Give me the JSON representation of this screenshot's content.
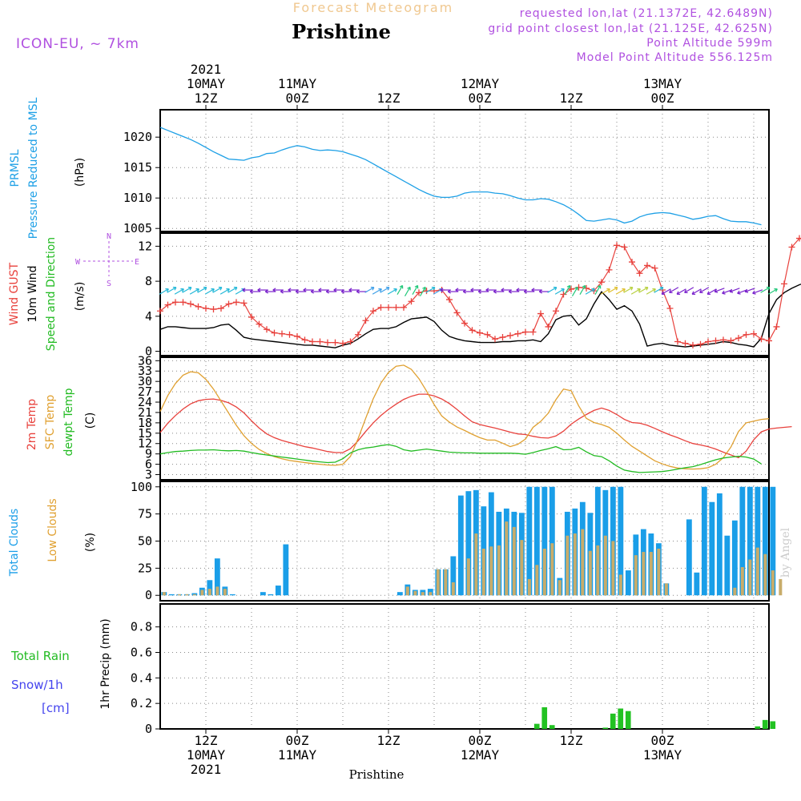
{
  "header": {
    "overtitle": "Forecast Meteogram",
    "title": "Prishtine",
    "model": "ICON-EU, ~ 7km",
    "requested": "requested lon,lat (21.1372E, 42.6489N)",
    "gridpoint": "grid point closest lon,lat (21.125E, 42.625N)",
    "altitude": "Point Altitude 599m",
    "model_altitude": "Model Point Altitude 556.125m",
    "footer": "Prishtine",
    "credit": "by Angel"
  },
  "time_axis": {
    "top_labels": [
      {
        "line1": "2021",
        "line2": "10MAY",
        "line3": "12Z"
      },
      {
        "line1": "",
        "line2": "11MAY",
        "line3": "00Z"
      },
      {
        "line1": "",
        "line2": "",
        "line3": "12Z"
      },
      {
        "line1": "",
        "line2": "12MAY",
        "line3": "00Z"
      },
      {
        "line1": "",
        "line2": "",
        "line3": "12Z"
      },
      {
        "line1": "",
        "line2": "13MAY",
        "line3": "00Z"
      }
    ],
    "bottom_labels": [
      {
        "line1": "12Z",
        "line2": "10MAY",
        "line3": "2021"
      },
      {
        "line1": "00Z",
        "line2": "11MAY",
        "line3": ""
      },
      {
        "line1": "12Z",
        "line2": "",
        "line3": ""
      },
      {
        "line1": "00Z",
        "line2": "12MAY",
        "line3": ""
      },
      {
        "line1": "12Z",
        "line2": "",
        "line3": ""
      },
      {
        "line1": "00Z",
        "line2": "13MAY",
        "line3": ""
      }
    ]
  },
  "panels": {
    "pressure": {
      "side_label_1": "PRMSL",
      "side_label_2": "Pressure Reduced to MSL",
      "unit": "(hPa)"
    },
    "wind": {
      "side_label_1": "Wind GUST",
      "side_label_2": "10m Wind",
      "side_label_3": "Speed and Direction",
      "unit": "(m/s)",
      "compass": [
        "N",
        "S",
        "W",
        "E"
      ]
    },
    "temp": {
      "side_label_1": "2m Temp",
      "side_label_2": "SFC Temp",
      "side_label_3": "dewpt Temp",
      "unit": "(C)"
    },
    "clouds": {
      "side_label_1": "Total Clouds",
      "side_label_2": "Low Clouds",
      "unit": "(%)"
    },
    "precip": {
      "side_label_1": "Total  Rain",
      "side_label_2": "Snow/1h",
      "side_label_3": "[cm]",
      "unit": "1hr Precip (mm)"
    }
  },
  "colors": {
    "pressure": "#1ea0e6",
    "gust": "#e8413c",
    "wind": "#000000",
    "t2m": "#e8413c",
    "tsfc": "#e0a030",
    "dewpt": "#22bb22",
    "total_clouds": "#1a9ee8",
    "low_clouds": "#c8ac6a",
    "rain": "#22c222",
    "snow": "#4444ee",
    "meta": "#b050e0",
    "overtitle": "#f0c890"
  },
  "chart_data": [
    {
      "type": "line",
      "panel": "pressure",
      "x_unit": "hours since 2021-05-10 00Z (forecast hour, 1h steps)",
      "x_start": 6,
      "ylim": [
        1004.5,
        1024.5
      ],
      "yticks": [
        1005,
        1010,
        1015,
        1020
      ],
      "series": [
        {
          "name": "PRMSL",
          "values": [
            1021.6,
            1021.1,
            1020.6,
            1020.1,
            1019.6,
            1019.0,
            1018.3,
            1017.6,
            1017.0,
            1016.4,
            1016.3,
            1016.2,
            1016.6,
            1016.8,
            1017.3,
            1017.4,
            1017.9,
            1018.3,
            1018.6,
            1018.4,
            1018.0,
            1017.8,
            1017.9,
            1017.8,
            1017.6,
            1017.2,
            1016.8,
            1016.3,
            1015.6,
            1014.9,
            1014.2,
            1013.5,
            1012.8,
            1012.1,
            1011.4,
            1010.8,
            1010.3,
            1010.1,
            1010.1,
            1010.3,
            1010.8,
            1011.0,
            1011.0,
            1011.0,
            1010.8,
            1010.7,
            1010.4,
            1010.0,
            1009.7,
            1009.7,
            1009.9,
            1009.8,
            1009.4,
            1008.9,
            1008.2,
            1007.3,
            1006.3,
            1006.2,
            1006.4,
            1006.6,
            1006.4,
            1005.9,
            1006.2,
            1006.9,
            1007.3,
            1007.5,
            1007.6,
            1007.5,
            1007.2,
            1006.9,
            1006.5,
            1006.7,
            1007.0,
            1007.1,
            1006.6,
            1006.2,
            1006.1,
            1006.1,
            1005.9,
            1005.6
          ]
        }
      ]
    },
    {
      "type": "line",
      "panel": "wind",
      "x_unit": "hours since 2021-05-10 00Z",
      "x_start": 6,
      "ylim": [
        -0.5,
        13.5
      ],
      "yticks": [
        0,
        4,
        8,
        12
      ],
      "series": [
        {
          "name": "Wind GUST",
          "values": [
            4.6,
            5.3,
            5.6,
            5.6,
            5.4,
            5.1,
            4.9,
            4.8,
            4.9,
            5.4,
            5.6,
            5.5,
            3.9,
            3.1,
            2.5,
            2.1,
            2.0,
            1.9,
            1.7,
            1.3,
            1.1,
            1.1,
            1.0,
            1.0,
            0.9,
            1.1,
            1.9,
            3.5,
            4.6,
            5.0,
            5.0,
            5.0,
            5.0,
            5.7,
            6.7,
            6.9,
            6.9,
            7.0,
            5.9,
            4.4,
            3.2,
            2.4,
            2.1,
            1.9,
            1.4,
            1.6,
            1.8,
            2.0,
            2.2,
            2.2,
            4.3,
            2.8,
            4.6,
            6.5,
            7.1,
            7.3,
            7.2,
            6.9,
            7.9,
            9.3,
            12.1,
            11.9,
            10.2,
            8.9,
            9.8,
            9.5,
            7.0,
            4.9,
            1.1,
            0.9,
            0.7,
            0.8,
            1.1,
            1.2,
            1.3,
            1.2,
            1.5,
            1.9,
            2.0,
            1.4,
            1.2,
            2.8,
            7.7,
            11.9,
            12.9,
            12.6
          ]
        },
        {
          "name": "10m Wind",
          "values": [
            2.5,
            2.8,
            2.8,
            2.7,
            2.6,
            2.6,
            2.6,
            2.7,
            3.0,
            3.1,
            2.4,
            1.6,
            1.4,
            1.3,
            1.2,
            1.1,
            1.0,
            0.9,
            0.8,
            0.7,
            0.7,
            0.6,
            0.5,
            0.4,
            0.7,
            0.9,
            1.4,
            2.0,
            2.5,
            2.6,
            2.6,
            2.8,
            3.3,
            3.7,
            3.8,
            3.9,
            3.4,
            2.4,
            1.7,
            1.4,
            1.2,
            1.1,
            1.0,
            1.0,
            1.0,
            1.1,
            1.1,
            1.2,
            1.2,
            1.3,
            1.1,
            2.0,
            3.6,
            4.0,
            4.1,
            3.0,
            3.7,
            5.4,
            6.8,
            5.9,
            4.8,
            5.2,
            4.6,
            3.1,
            0.6,
            0.8,
            0.9,
            0.7,
            0.6,
            0.5,
            0.6,
            0.7,
            0.8,
            0.9,
            1.1,
            1.0,
            0.8,
            0.7,
            0.5,
            1.5,
            4.3,
            5.9,
            6.7,
            7.2,
            7.6,
            7.9
          ]
        }
      ]
    },
    {
      "type": "line",
      "panel": "temperature",
      "x_unit": "hours since 2021-05-10 00Z",
      "x_start": 6,
      "ylim": [
        1.5,
        37
      ],
      "yticks": [
        3,
        6,
        9,
        12,
        15,
        18,
        21,
        24,
        27,
        30,
        33,
        36
      ],
      "series": [
        {
          "name": "2m Temp",
          "values": [
            15.2,
            17.9,
            20.1,
            22.0,
            23.5,
            24.4,
            24.8,
            24.9,
            24.5,
            23.8,
            22.6,
            20.9,
            18.6,
            16.5,
            14.8,
            13.7,
            12.9,
            12.3,
            11.7,
            11.1,
            10.7,
            10.2,
            9.7,
            9.4,
            9.4,
            10.5,
            12.8,
            15.5,
            18.0,
            20.1,
            21.9,
            23.4,
            24.8,
            25.7,
            26.3,
            26.3,
            25.8,
            24.9,
            23.6,
            21.9,
            20.0,
            18.3,
            17.5,
            17.0,
            16.5,
            15.9,
            15.3,
            14.8,
            14.6,
            14.1,
            13.7,
            13.6,
            14.2,
            15.6,
            17.6,
            19.1,
            20.4,
            21.6,
            22.3,
            21.6,
            20.4,
            19.0,
            18.1,
            17.9,
            17.3,
            16.4,
            15.4,
            14.5,
            13.7,
            12.8,
            12.0,
            11.6,
            11.1,
            10.4,
            9.5,
            8.7,
            7.9,
            9.8,
            13.1,
            15.4,
            16.2,
            16.5,
            16.7,
            16.9
          ]
        },
        {
          "name": "SFC Temp",
          "values": [
            21.3,
            25.9,
            29.4,
            31.8,
            32.8,
            32.5,
            30.6,
            27.8,
            24.3,
            20.8,
            17.3,
            14.3,
            12.0,
            10.3,
            9.1,
            8.2,
            7.6,
            7.1,
            6.8,
            6.5,
            6.2,
            6.0,
            5.8,
            5.7,
            6.0,
            8.3,
            13.4,
            19.3,
            25.0,
            29.5,
            32.6,
            34.4,
            34.7,
            33.5,
            30.8,
            27.2,
            23.3,
            20.0,
            18.2,
            16.8,
            15.8,
            14.7,
            13.7,
            13.0,
            13.0,
            12.1,
            11.1,
            11.8,
            13.3,
            16.7,
            18.4,
            20.8,
            24.7,
            27.8,
            27.3,
            22.9,
            19.3,
            18.1,
            17.5,
            16.7,
            15.0,
            13.0,
            11.2,
            9.8,
            8.4,
            7.0,
            6.1,
            5.4,
            4.9,
            4.7,
            4.6,
            4.7,
            5.0,
            6.0,
            7.9,
            11.0,
            15.5,
            18.0,
            18.5,
            19.0,
            19.2
          ]
        },
        {
          "name": "dewpt Temp",
          "values": [
            9.0,
            9.4,
            9.7,
            9.8,
            10.0,
            10.1,
            10.1,
            10.2,
            10.0,
            9.9,
            10.0,
            9.8,
            9.4,
            9.0,
            8.7,
            8.4,
            8.1,
            7.8,
            7.5,
            7.2,
            6.9,
            6.7,
            6.5,
            6.6,
            7.6,
            9.3,
            10.2,
            10.7,
            11.0,
            11.4,
            11.7,
            11.2,
            10.2,
            9.8,
            10.1,
            10.4,
            10.1,
            9.8,
            9.5,
            9.4,
            9.3,
            9.3,
            9.2,
            9.2,
            9.2,
            9.2,
            9.2,
            9.1,
            8.9,
            9.4,
            10.0,
            10.5,
            11.1,
            10.2,
            10.3,
            10.9,
            9.6,
            8.5,
            8.2,
            7.0,
            5.5,
            4.3,
            3.9,
            3.6,
            3.7,
            3.8,
            3.9,
            4.2,
            4.6,
            5.0,
            5.3,
            5.9,
            6.6,
            7.3,
            7.8,
            8.1,
            8.3,
            8.1,
            7.5,
            6.1
          ]
        }
      ]
    },
    {
      "type": "bar",
      "panel": "clouds",
      "x_unit": "hours since 2021-05-10 00Z",
      "x_start": 6,
      "ylim": [
        -5,
        105
      ],
      "yticks": [
        0,
        25,
        50,
        75,
        100
      ],
      "series": [
        {
          "name": "Total Clouds",
          "values": [
            3,
            1,
            1,
            1,
            2,
            7,
            14,
            34,
            8,
            1,
            0,
            0,
            0,
            3,
            1,
            9,
            47,
            0,
            0,
            0,
            0,
            0,
            0,
            0,
            0,
            0,
            0,
            0,
            0,
            0,
            0,
            3,
            10,
            5,
            5,
            6,
            24,
            24,
            36,
            92,
            96,
            97,
            82,
            95,
            77,
            80,
            77,
            76,
            100,
            100,
            100,
            100,
            16,
            77,
            80,
            86,
            76,
            100,
            97,
            100,
            100,
            23,
            56,
            61,
            57,
            48,
            11,
            0,
            0,
            70,
            21,
            100,
            86,
            94,
            55,
            69,
            100,
            100,
            100,
            100,
            100
          ]
        },
        {
          "name": "Low Clouds",
          "values": [
            3,
            0,
            1,
            1,
            1,
            5,
            6,
            8,
            6,
            0,
            0,
            0,
            0,
            0,
            0,
            0,
            0,
            0,
            0,
            0,
            0,
            0,
            0,
            0,
            0,
            0,
            0,
            0,
            0,
            0,
            0,
            0,
            8,
            4,
            3,
            3,
            24,
            24,
            12,
            0,
            34,
            57,
            43,
            45,
            46,
            68,
            63,
            51,
            15,
            28,
            43,
            48,
            14,
            55,
            57,
            61,
            41,
            46,
            55,
            50,
            19,
            0,
            37,
            40,
            40,
            43,
            11,
            0,
            0,
            0,
            0,
            0,
            0,
            0,
            0,
            7,
            26,
            33,
            44,
            38,
            23,
            15
          ]
        }
      ]
    },
    {
      "type": "bar",
      "panel": "precipitation",
      "x_unit": "hours since 2021-05-10 00Z",
      "x_start": 6,
      "ylim": [
        0,
        0.98
      ],
      "yticks": [
        0,
        0.2,
        0.4,
        0.6,
        0.8
      ],
      "series": [
        {
          "name": "Total Rain",
          "values": [
            0,
            0,
            0,
            0,
            0,
            0,
            0,
            0,
            0,
            0,
            0,
            0,
            0,
            0,
            0,
            0,
            0,
            0,
            0,
            0,
            0,
            0,
            0,
            0,
            0,
            0,
            0,
            0,
            0,
            0,
            0,
            0,
            0,
            0,
            0,
            0,
            0,
            0,
            0,
            0,
            0,
            0,
            0,
            0,
            0,
            0,
            0,
            0,
            0,
            0.04,
            0.17,
            0.03,
            0,
            0,
            0,
            0,
            0,
            0,
            0.01,
            0.12,
            0.16,
            0.14,
            0,
            0,
            0,
            0,
            0,
            0,
            0,
            0,
            0,
            0,
            0,
            0,
            0,
            0,
            0,
            0,
            0.02,
            0.07,
            0.06
          ]
        }
      ]
    }
  ]
}
